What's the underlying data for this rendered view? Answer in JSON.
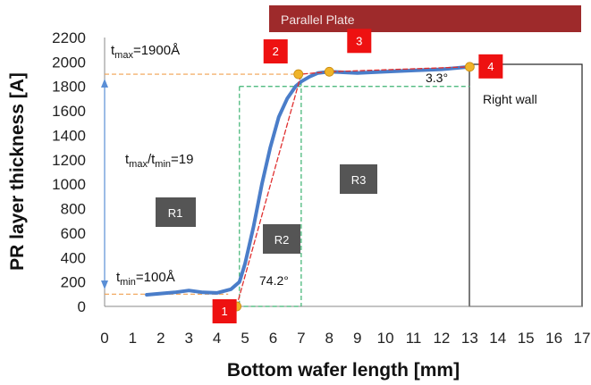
{
  "chart_data": {
    "type": "line",
    "xlabel": "Bottom wafer length [mm]",
    "ylabel": "PR layer thickness [A]",
    "xlim": [
      0,
      17
    ],
    "ylim": [
      0,
      2200
    ],
    "x_ticks": [
      "0",
      "1",
      "2",
      "3",
      "4",
      "5",
      "6",
      "7",
      "8",
      "9",
      "10",
      "11",
      "12",
      "13",
      "14",
      "15",
      "16",
      "17"
    ],
    "y_ticks": [
      "0",
      "200",
      "400",
      "600",
      "800",
      "1000",
      "1200",
      "1400",
      "1600",
      "1800",
      "2000",
      "2200"
    ],
    "grid": false,
    "series": [
      {
        "color": "#4a7dc9",
        "x": [
          1.5,
          2.0,
          2.5,
          3.0,
          3.5,
          4.0,
          4.5,
          4.8,
          5.0,
          5.3,
          5.6,
          5.9,
          6.2,
          6.5,
          6.8,
          7.0,
          7.3,
          7.6,
          8.0,
          8.5,
          9.0,
          10.0,
          11.0,
          12.0,
          13.0
        ],
        "y": [
          95,
          105,
          115,
          130,
          115,
          110,
          140,
          200,
          350,
          650,
          1000,
          1300,
          1550,
          1700,
          1800,
          1840,
          1880,
          1910,
          1920,
          1915,
          1910,
          1920,
          1930,
          1940,
          1960
        ]
      },
      {
        "color": "#e03030",
        "style": "dashed",
        "x": [
          4.7,
          7.0,
          8.0,
          13.0
        ],
        "y": [
          0,
          1900,
          1920,
          1960
        ]
      }
    ],
    "markers": [
      {
        "label": "1",
        "x": 4.7,
        "y": 0
      },
      {
        "label": "2",
        "x": 6.9,
        "y": 1900
      },
      {
        "label": "3",
        "x": 8.0,
        "y": 1920
      },
      {
        "label": "4",
        "x": 13.0,
        "y": 1960
      }
    ],
    "marker_color": "#f0b429",
    "marker_box_color": "#ee1111",
    "banner": {
      "text": "Parallel Plate",
      "color": "#9e2a2b"
    },
    "right_wall_label": "Right wall",
    "regions": [
      "R1",
      "R2",
      "R3"
    ],
    "region_box_color": "#555555",
    "annotations": {
      "tmax_base": "t",
      "tmax_sub": "max",
      "tmax_value": "=1900Å",
      "ratio_base1": "t",
      "ratio_sub1": "max",
      "ratio_slash": "/t",
      "ratio_sub2": "min",
      "ratio_value": "=19",
      "tmin_base": "t",
      "tmin_sub": "min",
      "tmin_value": "=100Å",
      "angle_steep": "74.2°",
      "angle_shallow": "3.3°"
    }
  }
}
